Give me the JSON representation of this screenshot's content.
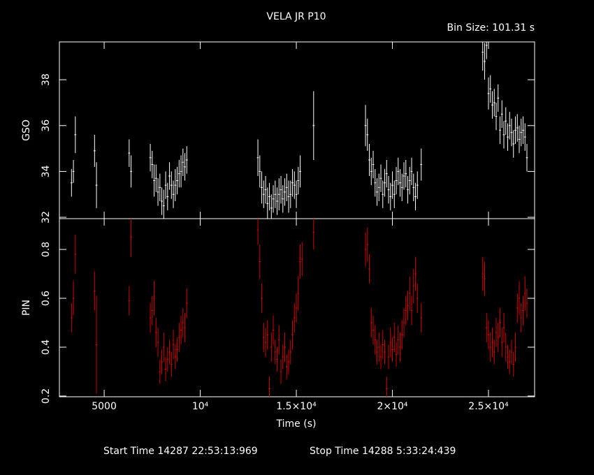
{
  "title": "VELA JR P10",
  "bin_size": "Bin Size: 101.31 s",
  "x_label": "Time (s)",
  "start_time": "Start Time 14287 22:53:13:969",
  "stop_time": "Stop Time 14288  5:33:24:439",
  "chart_data": [
    {
      "type": "errorbar",
      "ylabel": "GSO",
      "color": "#ffffff",
      "ylim": [
        31.94,
        39.65
      ],
      "yticks": [
        32,
        34,
        36,
        38
      ],
      "x": [
        3300,
        3400,
        3500,
        4500,
        4600,
        6300,
        6400,
        7400,
        7500,
        7600,
        7700,
        7800,
        7900,
        8000,
        8100,
        8200,
        8300,
        8400,
        8500,
        8600,
        8700,
        8800,
        8900,
        9000,
        9100,
        9200,
        9300,
        13000,
        13100,
        13200,
        13300,
        13400,
        13500,
        13600,
        13700,
        13800,
        13900,
        14000,
        14100,
        14200,
        14300,
        14400,
        14500,
        14600,
        14700,
        14800,
        14900,
        15000,
        15100,
        15200,
        15900,
        18600,
        18700,
        18800,
        18900,
        19000,
        19100,
        19200,
        19300,
        19400,
        19500,
        19600,
        19700,
        19800,
        19900,
        20000,
        20100,
        20200,
        20300,
        20400,
        20500,
        20600,
        20700,
        20800,
        20900,
        21000,
        21100,
        21200,
        21300,
        21500,
        24700,
        24800,
        24900,
        25000,
        25100,
        25200,
        25300,
        25400,
        25500,
        25600,
        25700,
        25800,
        25900,
        26000,
        26100,
        26200,
        26300,
        26400,
        26500,
        26600,
        26700,
        26800,
        26900,
        27000
      ],
      "values": [
        33.5,
        34.0,
        35.6,
        34.9,
        33.4,
        34.8,
        34.0,
        34.6,
        34.3,
        33.6,
        33.7,
        33.1,
        33.3,
        32.7,
        32.5,
        33.4,
        32.9,
        33.8,
        33.4,
        33.0,
        33.4,
        33.6,
        33.9,
        34.0,
        34.4,
        34.2,
        34.5,
        34.6,
        34.0,
        33.3,
        33.0,
        33.2,
        32.6,
        32.9,
        32.4,
        32.8,
        33.0,
        32.7,
        33.0,
        33.2,
        32.8,
        33.1,
        33.3,
        32.9,
        33.0,
        33.5,
        33.4,
        33.0,
        33.6,
        34.0,
        36.0,
        36.0,
        35.6,
        34.5,
        34.0,
        34.3,
        33.5,
        33.1,
        33.3,
        33.7,
        33.0,
        33.5,
        33.9,
        33.2,
        32.9,
        33.4,
        33.0,
        33.6,
        34.0,
        33.5,
        33.3,
        33.8,
        33.9,
        33.2,
        33.6,
        34.0,
        33.3,
        32.9,
        33.4,
        34.3,
        39.2,
        38.8,
        39.5,
        37.4,
        37.6,
        36.9,
        37.0,
        36.4,
        37.2,
        35.8,
        36.5,
        35.6,
        36.2,
        35.5,
        36.0,
        35.7,
        35.2,
        35.8,
        35.9,
        35.4,
        35.7,
        35.8,
        35.5,
        34.6
      ],
      "errors": [
        0.6,
        0.5,
        0.8,
        0.7,
        1.0,
        0.6,
        0.7,
        0.6,
        0.6,
        0.7,
        0.6,
        0.6,
        0.6,
        0.6,
        0.7,
        0.6,
        0.6,
        0.6,
        0.6,
        0.6,
        0.7,
        0.6,
        0.6,
        0.7,
        0.6,
        0.6,
        0.6,
        0.8,
        0.7,
        0.7,
        0.6,
        0.6,
        0.7,
        0.6,
        0.6,
        0.6,
        0.6,
        0.6,
        0.7,
        0.6,
        0.6,
        0.6,
        0.6,
        0.7,
        0.6,
        0.6,
        0.6,
        0.6,
        0.6,
        0.7,
        1.5,
        0.9,
        0.7,
        0.7,
        0.6,
        0.6,
        0.6,
        0.6,
        0.6,
        0.6,
        0.6,
        0.6,
        0.6,
        0.6,
        0.6,
        0.6,
        0.6,
        0.6,
        0.6,
        0.6,
        0.6,
        0.6,
        0.6,
        0.6,
        0.6,
        0.6,
        0.6,
        0.6,
        0.6,
        0.7,
        0.8,
        0.8,
        0.6,
        0.7,
        0.6,
        0.6,
        0.6,
        0.6,
        0.6,
        0.6,
        0.6,
        0.6,
        0.6,
        0.6,
        0.6,
        0.6,
        0.6,
        0.6,
        0.6,
        0.6,
        0.6,
        0.6,
        0.6,
        0.6
      ]
    },
    {
      "type": "errorbar",
      "ylabel": "PIN",
      "color": "#d40000",
      "ylim": [
        0.197,
        0.926
      ],
      "yticks": [
        0.2,
        0.4,
        0.6,
        0.8
      ],
      "xlim": [
        2670,
        27400
      ],
      "xticks": [
        5000,
        {
          "value": 10000,
          "label": "10⁴"
        },
        {
          "value": 15000,
          "label": "1.5×10⁴"
        },
        {
          "value": 20000,
          "label": "2×10⁴"
        },
        {
          "value": 25000,
          "label": "2.5×10⁴"
        }
      ],
      "x": [
        3300,
        3400,
        3500,
        4500,
        4600,
        6300,
        6400,
        7400,
        7500,
        7600,
        7700,
        7800,
        7900,
        8000,
        8100,
        8200,
        8300,
        8400,
        8500,
        8600,
        8700,
        8800,
        8900,
        9000,
        9100,
        9200,
        9300,
        13000,
        13100,
        13200,
        13300,
        13400,
        13500,
        13600,
        13700,
        13800,
        13900,
        14000,
        14100,
        14200,
        14300,
        14400,
        14500,
        14600,
        14700,
        14800,
        14900,
        15000,
        15100,
        15200,
        15300,
        15900,
        18600,
        18700,
        18800,
        18900,
        19000,
        19100,
        19200,
        19300,
        19400,
        19500,
        19600,
        19700,
        19800,
        19900,
        20000,
        20100,
        20200,
        20300,
        20400,
        20500,
        20600,
        20700,
        20800,
        20900,
        21000,
        21100,
        21200,
        21300,
        21500,
        24700,
        24800,
        24900,
        25000,
        25100,
        25200,
        25300,
        25400,
        25500,
        25600,
        25700,
        25800,
        25900,
        26000,
        26100,
        26200,
        26300,
        26400,
        26500,
        26600,
        26700,
        26800,
        26900,
        27000
      ],
      "values": [
        0.52,
        0.6,
        0.78,
        0.63,
        0.41,
        0.59,
        0.85,
        0.52,
        0.55,
        0.6,
        0.46,
        0.42,
        0.3,
        0.34,
        0.4,
        0.31,
        0.35,
        0.38,
        0.33,
        0.41,
        0.36,
        0.39,
        0.44,
        0.47,
        0.5,
        0.48,
        0.58,
        0.88,
        0.75,
        0.6,
        0.44,
        0.42,
        0.45,
        0.23,
        0.4,
        0.47,
        0.38,
        0.35,
        0.43,
        0.3,
        0.36,
        0.4,
        0.32,
        0.34,
        0.38,
        0.45,
        0.52,
        0.56,
        0.62,
        0.75,
        0.76,
        0.87,
        0.8,
        0.82,
        0.72,
        0.5,
        0.47,
        0.43,
        0.38,
        0.4,
        0.36,
        0.41,
        0.38,
        0.23,
        0.36,
        0.42,
        0.39,
        0.44,
        0.37,
        0.43,
        0.4,
        0.45,
        0.5,
        0.55,
        0.57,
        0.62,
        0.55,
        0.65,
        0.7,
        0.6,
        0.52,
        0.7,
        0.68,
        0.48,
        0.45,
        0.4,
        0.42,
        0.38,
        0.46,
        0.44,
        0.5,
        0.42,
        0.48,
        0.4,
        0.36,
        0.34,
        0.38,
        0.33,
        0.4,
        0.56,
        0.6,
        0.52,
        0.55,
        0.62,
        0.58
      ],
      "errors": [
        0.06,
        0.07,
        0.08,
        0.08,
        0.2,
        0.06,
        0.08,
        0.06,
        0.06,
        0.07,
        0.06,
        0.06,
        0.05,
        0.05,
        0.06,
        0.05,
        0.05,
        0.05,
        0.05,
        0.06,
        0.05,
        0.05,
        0.06,
        0.06,
        0.06,
        0.06,
        0.06,
        0.06,
        0.07,
        0.06,
        0.06,
        0.06,
        0.06,
        0.05,
        0.06,
        0.06,
        0.05,
        0.05,
        0.06,
        0.05,
        0.05,
        0.06,
        0.05,
        0.05,
        0.05,
        0.06,
        0.06,
        0.06,
        0.07,
        0.07,
        0.07,
        0.07,
        0.07,
        0.07,
        0.06,
        0.06,
        0.06,
        0.06,
        0.05,
        0.06,
        0.05,
        0.06,
        0.05,
        0.05,
        0.05,
        0.06,
        0.05,
        0.06,
        0.05,
        0.06,
        0.06,
        0.06,
        0.06,
        0.06,
        0.06,
        0.07,
        0.06,
        0.07,
        0.07,
        0.06,
        0.06,
        0.07,
        0.07,
        0.06,
        0.06,
        0.06,
        0.06,
        0.05,
        0.06,
        0.06,
        0.06,
        0.06,
        0.06,
        0.06,
        0.05,
        0.05,
        0.05,
        0.05,
        0.06,
        0.06,
        0.07,
        0.06,
        0.06,
        0.07,
        0.06
      ]
    }
  ]
}
